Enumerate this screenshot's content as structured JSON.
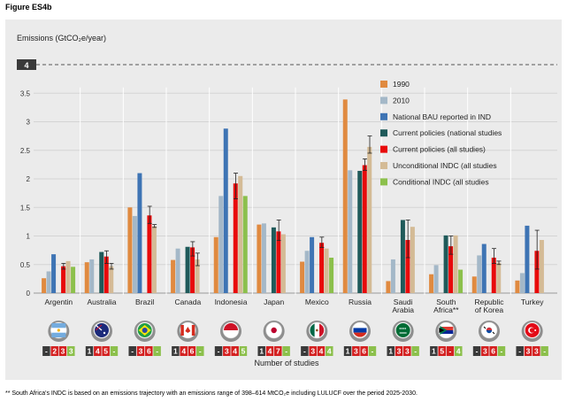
{
  "figure_title": "Figure ES4b",
  "footnote": "** South Africa's INDC is based on an emissions trajectory with an emissions range of 398–614 MtCO₂e including LULUCF over the period 2025-2030.",
  "colors": {
    "1990": "#e08a40",
    "2010": "#a4b8c8",
    "National BAU reported in IND": "#3e74b4",
    "Current policies (national studies": "#1f5a5a",
    "Current policies (all studies)": "#e80a0a",
    "Unconditional INDC (all studies": "#d4bb96",
    "Conditional INDC (all studies": "#8cc04c",
    "box_gray": "#3a3a3a",
    "box_red": "#d42020",
    "box_green": "#8cc04c"
  },
  "chart_data": {
    "type": "bar",
    "title": "",
    "ylabel": "Emissions (GtCO₂e/year)",
    "xlabel": "Number of studies",
    "ylim": [
      0,
      4
    ],
    "yticks": [
      "0",
      "0.5",
      "1",
      "1.5",
      "2",
      "2.5",
      "3",
      "3.5",
      "4"
    ],
    "legend_position": "top-right",
    "categories": [
      "Argentin",
      "Australia",
      "Brazil",
      "Canada",
      "Indonesia",
      "Japan",
      "Mexico",
      "Russia",
      "Saudi Arabia",
      "South Africa**",
      "Republic of Korea",
      "Turkey"
    ],
    "series": [
      {
        "name": "1990",
        "values": [
          0.26,
          0.54,
          1.5,
          0.58,
          0.98,
          1.2,
          0.55,
          3.39,
          0.21,
          0.33,
          0.29,
          0.22
        ]
      },
      {
        "name": "2010",
        "values": [
          0.38,
          0.59,
          1.35,
          0.78,
          1.7,
          1.22,
          0.74,
          2.15,
          0.59,
          0.49,
          0.66,
          0.35
        ]
      },
      {
        "name": "National BAU reported in IND",
        "values": [
          0.68,
          null,
          2.1,
          null,
          2.88,
          null,
          0.98,
          null,
          null,
          null,
          0.86,
          1.18
        ]
      },
      {
        "name": "Current policies (national studies",
        "values": [
          null,
          0.72,
          null,
          0.81,
          null,
          1.15,
          null,
          2.14,
          1.28,
          1.01,
          null,
          null
        ]
      },
      {
        "name": "Current policies (all studies)",
        "values": [
          0.47,
          0.64,
          1.36,
          0.8,
          1.92,
          1.08,
          0.88,
          2.24,
          0.93,
          0.82,
          0.62,
          0.74
        ]
      },
      {
        "name": "Unconditional INDC (all studies",
        "values": [
          0.56,
          0.47,
          1.17,
          0.59,
          2.05,
          1.03,
          0.78,
          2.56,
          1.16,
          1.01,
          0.53,
          0.93
        ]
      },
      {
        "name": "Conditional INDC (all studies",
        "values": [
          0.46,
          null,
          null,
          null,
          1.7,
          null,
          0.62,
          null,
          null,
          0.41,
          null,
          null
        ]
      }
    ],
    "error_bars_on": "Current policies (all studies)",
    "error_low": [
      0.42,
      0.52,
      1.22,
      0.65,
      1.65,
      0.92,
      0.8,
      2.15,
      0.62,
      0.68,
      0.52,
      0.42
    ],
    "error_high": [
      0.52,
      0.74,
      1.52,
      0.9,
      2.1,
      1.28,
      0.98,
      2.35,
      1.28,
      1.0,
      0.78,
      1.1
    ],
    "unconditional_error_low": [
      null,
      0.42,
      1.15,
      0.48,
      null,
      null,
      null,
      2.45,
      null,
      null,
      0.5,
      null
    ],
    "unconditional_error_high": [
      null,
      0.52,
      1.2,
      0.7,
      null,
      null,
      null,
      2.75,
      null,
      null,
      0.56,
      null
    ],
    "study_counts": [
      [
        "-",
        "2",
        "3",
        "3"
      ],
      [
        "1",
        "4",
        "5",
        "-"
      ],
      [
        "-",
        "3",
        "6",
        "-"
      ],
      [
        "1",
        "4",
        "6",
        "-"
      ],
      [
        "-",
        "3",
        "4",
        "5"
      ],
      [
        "1",
        "4",
        "7",
        "-"
      ],
      [
        "-",
        "3",
        "4",
        "4"
      ],
      [
        "1",
        "3",
        "6",
        "-"
      ],
      [
        "1",
        "3",
        "3",
        "-"
      ],
      [
        "1",
        "5",
        "-",
        "4"
      ],
      [
        "-",
        "3",
        "6",
        "-"
      ],
      [
        "-",
        "3",
        "3",
        "-"
      ]
    ],
    "country_lines": [
      [
        "Argentin"
      ],
      [
        "Australia"
      ],
      [
        "Brazil"
      ],
      [
        "Canada"
      ],
      [
        "Indonesia"
      ],
      [
        "Japan"
      ],
      [
        "Mexico"
      ],
      [
        "Russia"
      ],
      [
        "Saudi",
        "Arabia"
      ],
      [
        "South",
        "Africa**"
      ],
      [
        "Republic",
        "of Korea"
      ],
      [
        "Turkey"
      ]
    ],
    "flag_icons": [
      "argentina-flag-icon",
      "australia-flag-icon",
      "brazil-flag-icon",
      "canada-flag-icon",
      "indonesia-flag-icon",
      "japan-flag-icon",
      "mexico-flag-icon",
      "russia-flag-icon",
      "saudi-arabia-flag-icon",
      "south-africa-flag-icon",
      "south-korea-flag-icon",
      "turkey-flag-icon"
    ]
  }
}
